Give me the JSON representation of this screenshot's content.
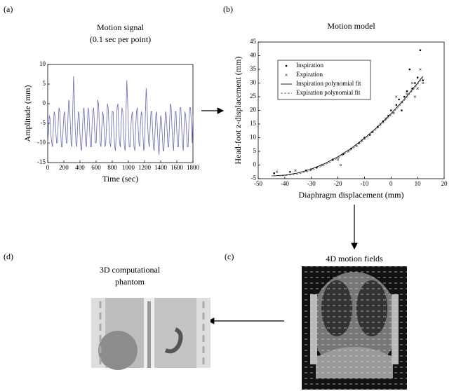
{
  "panels": {
    "a": "(a)",
    "b": "(b)",
    "c": "(c)",
    "d": "(d)",
    "c_title": "4D motion fields",
    "d_title_1": "3D computational",
    "d_title_2": "phantom"
  },
  "chart_data": [
    {
      "type": "line",
      "title": "Motion signal",
      "subtitle": "(0.1 sec per point)",
      "xlabel": "Time (sec)",
      "ylabel": "Amplitude (mm)",
      "color": "#6a6ab0",
      "xlim": [
        0,
        1800
      ],
      "xticks": [
        0,
        200,
        400,
        600,
        800,
        1000,
        1200,
        1400,
        1600,
        1800
      ],
      "ylim": [
        -15,
        10
      ],
      "yticks": [
        -15,
        -10,
        -5,
        0,
        5,
        10
      ],
      "x": [
        0,
        10,
        20,
        30,
        40,
        50,
        60,
        70,
        80,
        90,
        100,
        110,
        120,
        130,
        140,
        150,
        160,
        170,
        180,
        190,
        200,
        210,
        220,
        230,
        240,
        250,
        260,
        270,
        280,
        290,
        300,
        310,
        320,
        330,
        340,
        350,
        360,
        370,
        380,
        390,
        400,
        410,
        420,
        430,
        440,
        450,
        460,
        470,
        480,
        490,
        500,
        510,
        520,
        530,
        540,
        550,
        560,
        570,
        580,
        590,
        600,
        610,
        620,
        630,
        640,
        650,
        660,
        670,
        680,
        690,
        700,
        710,
        720,
        730,
        740,
        750,
        760,
        770,
        780,
        790,
        800,
        810,
        820,
        830,
        840,
        850,
        860,
        870,
        880,
        890,
        900,
        910,
        920,
        930,
        940,
        950,
        960,
        970,
        980,
        990,
        1000,
        1010,
        1020,
        1030,
        1040,
        1050,
        1060,
        1070,
        1080,
        1090,
        1100,
        1110,
        1120,
        1130,
        1140,
        1150,
        1160,
        1170,
        1180,
        1190,
        1200,
        1210,
        1220,
        1230,
        1240,
        1250,
        1260,
        1270,
        1280,
        1290,
        1300,
        1310,
        1320,
        1330,
        1340,
        1350,
        1360,
        1370,
        1380,
        1390,
        1400,
        1410,
        1420,
        1430,
        1440,
        1450,
        1460,
        1470,
        1480,
        1490,
        1500,
        1510,
        1520,
        1530,
        1540,
        1550,
        1560,
        1570,
        1580,
        1590,
        1600,
        1610,
        1620,
        1630,
        1640,
        1650,
        1660,
        1670,
        1680,
        1690,
        1700,
        1710,
        1720,
        1730,
        1740,
        1750,
        1760,
        1770,
        1780,
        1790,
        1800
      ],
      "values": [
        -10,
        -7,
        -3,
        -4,
        -8,
        -10,
        -11,
        -6,
        -2,
        -3,
        -7,
        -10,
        -10,
        -5,
        -1,
        -2,
        -7,
        -11,
        -11,
        -7,
        -3,
        -2,
        -6,
        -10,
        -10,
        -4,
        1,
        0,
        -5,
        -10,
        -11,
        -2,
        7,
        2,
        -6,
        -10,
        -11,
        -6,
        -2,
        -3,
        -8,
        -11,
        -12,
        -7,
        -2,
        -1,
        -6,
        -10,
        -11,
        -6,
        -1,
        -2,
        -7,
        -11,
        -11,
        -5,
        -2,
        -1,
        -6,
        -10,
        -10,
        -5,
        1,
        0,
        -5,
        -10,
        -11,
        -6,
        -2,
        -3,
        -7,
        -11,
        -10,
        -5,
        0,
        -1,
        -6,
        -10,
        -11,
        -6,
        -2,
        -2,
        -7,
        -11,
        -12,
        -7,
        -1,
        0,
        -6,
        -10,
        -11,
        -5,
        -1,
        -2,
        -7,
        -11,
        -12,
        -3,
        6,
        1,
        -6,
        -11,
        -11,
        -6,
        -3,
        -2,
        -7,
        -11,
        -12,
        -6,
        -2,
        -1,
        -6,
        -10,
        -11,
        -5,
        -2,
        -3,
        -8,
        -12,
        -11,
        -3,
        4,
        0,
        -6,
        -10,
        -11,
        -6,
        -2,
        -2,
        -7,
        -11,
        -12,
        -7,
        -3,
        -2,
        -7,
        -11,
        -13,
        -7,
        -3,
        -4,
        -8,
        -12,
        -12,
        -6,
        -2,
        -3,
        -7,
        -11,
        -11,
        -5,
        0,
        -1,
        -6,
        -10,
        -12,
        -6,
        -2,
        -2,
        -7,
        -11,
        -11,
        -5,
        -1,
        -1,
        -6,
        -10,
        -12,
        -6,
        -2,
        -3,
        -7,
        -11,
        -11,
        -5,
        -1,
        -1,
        -5,
        -10,
        -3
      ]
    },
    {
      "type": "scatter",
      "title": "Motion model",
      "xlabel": "Diaphragm displacement  (mm)",
      "ylabel": "Head-foot z-displacement  (mm)",
      "xlim": [
        -50,
        20
      ],
      "xticks": [
        -50,
        -40,
        -30,
        -20,
        -10,
        0,
        10,
        20
      ],
      "ylim": [
        -5,
        45
      ],
      "yticks": [
        -5,
        0,
        5,
        10,
        15,
        20,
        25,
        30,
        35,
        40,
        45
      ],
      "legend": "upper left",
      "series": [
        {
          "name": "Inspiration",
          "color": "#000000",
          "marker": "dot",
          "x": [
            -44,
            -38,
            -32,
            -28,
            -22,
            -18,
            -15,
            -12,
            -10,
            -8,
            -5,
            -3,
            -1,
            0,
            2,
            3,
            5,
            6,
            8,
            9,
            10,
            11,
            12,
            7,
            4
          ],
          "values": [
            -3,
            -2.5,
            -2,
            -1,
            2,
            4,
            6,
            8,
            10,
            11,
            14,
            16,
            18,
            20,
            22,
            24,
            25,
            27,
            28,
            30,
            32,
            42,
            31,
            35,
            20
          ]
        },
        {
          "name": "Expiration",
          "color": "#555555",
          "marker": "cross",
          "x": [
            -43,
            -36,
            -30,
            -26,
            -20,
            -16,
            -13,
            -11,
            -7,
            -4,
            -2,
            1,
            2,
            4,
            6,
            8,
            10,
            11,
            12,
            -19,
            9
          ],
          "values": [
            -2.5,
            -2,
            -1.5,
            0,
            2,
            5,
            7,
            9,
            12,
            15,
            17,
            19,
            25,
            23,
            26,
            30,
            28,
            35,
            30,
            0,
            25
          ]
        },
        {
          "name": "Inspiration polynomial fit",
          "color": "#000000",
          "line_style": "solid",
          "x": [
            -45,
            -40,
            -35,
            -30,
            -25,
            -20,
            -15,
            -10,
            -5,
            0,
            5,
            10,
            12
          ],
          "values": [
            -4,
            -3.7,
            -2.9,
            -1.5,
            0.5,
            3,
            6.1,
            9.8,
            14,
            18.8,
            24.1,
            30,
            32.5
          ]
        },
        {
          "name": "Expiration polynomial fit",
          "color": "#666666",
          "line_style": "dashed",
          "x": [
            -45,
            -40,
            -35,
            -30,
            -25,
            -20,
            -15,
            -10,
            -5,
            0,
            5,
            10,
            12
          ],
          "values": [
            -4,
            -3.9,
            -3.3,
            -2,
            0,
            2.5,
            5.6,
            9.3,
            13.5,
            18.3,
            23.6,
            29.5,
            32
          ]
        }
      ]
    }
  ]
}
